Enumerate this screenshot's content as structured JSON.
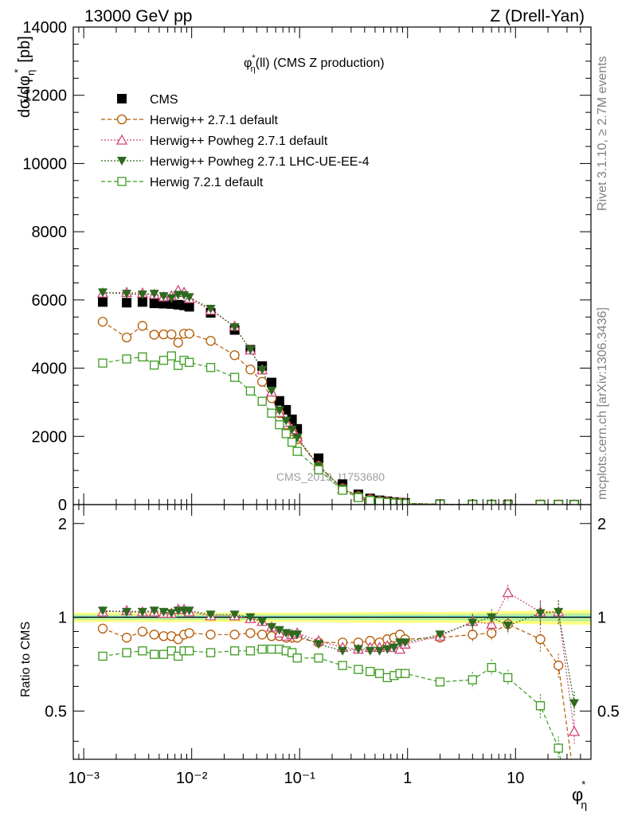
{
  "header": {
    "left": "13000 GeV pp",
    "right": "Z (Drell-Yan)",
    "plot_title": "φ",
    "plot_title_sup": "*",
    "plot_title_sub": "η",
    "plot_title_rest": "(ll) (CMS Z production)",
    "watermark": "CMS_2019_I1753680",
    "side_rivet": "Rivet 3.1.10, ≥ 2.7M events",
    "side_mcplots": "mcplots.cern.ch [arXiv:1306.3436]"
  },
  "axes": {
    "ylabel_main": "dσ/dφ",
    "ylabel_main_sub": "η",
    "ylabel_main_sup": "*",
    "ylabel_main_unit": "[pb]",
    "ylabel_ratio": "Ratio to CMS",
    "xlabel": "φ",
    "xlabel_sup": "*",
    "xlabel_sub": "η"
  },
  "chart_data": [
    {
      "panel": "main",
      "type": "line",
      "x_scale": "log",
      "xlim": [
        0.0008,
        50
      ],
      "ylim": [
        0,
        14000
      ],
      "y_ticks": [
        "0",
        "2000",
        "4000",
        "6000",
        "8000",
        "10000",
        "12000",
        "14000"
      ],
      "y_tick_values": [
        0,
        2000,
        4000,
        6000,
        8000,
        10000,
        12000,
        14000
      ],
      "x_ticks": [
        "10⁻³",
        "10⁻²",
        "10⁻¹",
        "1",
        "10"
      ],
      "x_tick_values": [
        0.001,
        0.01,
        0.1,
        1,
        10
      ],
      "legend_position": "top-left",
      "x": [
        0.0015,
        0.0025,
        0.0035,
        0.0045,
        0.0055,
        0.0065,
        0.0075,
        0.0085,
        0.0095,
        0.015,
        0.025,
        0.035,
        0.045,
        0.055,
        0.065,
        0.075,
        0.085,
        0.095,
        0.15,
        0.25,
        0.35,
        0.45,
        0.55,
        0.65,
        0.75,
        0.85,
        0.95,
        2,
        4,
        6,
        8.5,
        17,
        25,
        35
      ],
      "series": [
        {
          "name": "CMS",
          "color": "#000000",
          "marker": "square-filled",
          "values": [
            5940,
            5920,
            5940,
            5900,
            5890,
            5880,
            5860,
            5840,
            5800,
            5620,
            5120,
            4540,
            4060,
            3580,
            3040,
            2780,
            2500,
            2220,
            1360,
            600,
            300,
            180,
            125,
            98,
            72,
            58,
            48,
            12,
            3,
            1.8,
            1.2,
            0.6,
            0.4,
            0.3
          ]
        },
        {
          "name": "Herwig++ 2.7.1 default",
          "color": "#b35900",
          "marker": "circle-open",
          "dash": "dashed",
          "values": [
            5360,
            4900,
            5240,
            4980,
            4990,
            4990,
            4750,
            5010,
            5010,
            4800,
            4380,
            3960,
            3600,
            3120,
            2680,
            2350,
            2150,
            1920,
            1130,
            480,
            250,
            155,
            105,
            85,
            62,
            51,
            40,
            10,
            2.6,
            1.5,
            1.1,
            0.4,
            0.25,
            0.1
          ]
        },
        {
          "name": "Herwig++ Powheg 2.7.1 default",
          "color": "#d0457a",
          "marker": "triangle-open",
          "dash": "dotted",
          "values": [
            6200,
            6220,
            6200,
            6160,
            6090,
            6120,
            6280,
            6220,
            6040,
            5700,
            5230,
            4530,
            3950,
            3300,
            2700,
            2410,
            2200,
            1980,
            1140,
            460,
            240,
            145,
            100,
            80,
            58,
            46,
            40,
            10,
            2.9,
            1.7,
            1.4,
            0.6,
            0.42,
            0.13
          ]
        },
        {
          "name": "Herwig++ Powheg 2.7.1 LHC-UE-EE-4",
          "color": "#2d6a1f",
          "marker": "triangle-down-filled",
          "dash": "dotted",
          "values": [
            6220,
            6180,
            6160,
            6180,
            6110,
            6050,
            6150,
            6140,
            6080,
            5740,
            5200,
            4540,
            3950,
            3340,
            2760,
            2460,
            2200,
            1960,
            1120,
            470,
            240,
            140,
            97,
            77,
            58,
            48,
            40,
            10,
            2.9,
            1.8,
            1.1,
            0.6,
            0.42,
            0.16
          ]
        },
        {
          "name": "Herwig 7.2.1 default",
          "color": "#3c9a1f",
          "marker": "square-open",
          "dash": "dashed",
          "values": [
            4150,
            4270,
            4330,
            4090,
            4230,
            4360,
            4080,
            4230,
            4170,
            4020,
            3730,
            3330,
            3030,
            2680,
            2340,
            2080,
            1830,
            1560,
            1020,
            420,
            205,
            120,
            82,
            62,
            47,
            38,
            31,
            7.3,
            1.9,
            1.2,
            0.8,
            0.3,
            0.15,
            0.08
          ]
        }
      ]
    },
    {
      "panel": "ratio",
      "type": "line",
      "x_scale": "log",
      "xlim": [
        0.0008,
        50
      ],
      "ylim": [
        0.35,
        2.3
      ],
      "y_ticks": [
        "0.5",
        "1",
        "2"
      ],
      "y_tick_values": [
        0.5,
        1,
        2
      ],
      "ylabel": "Ratio to CMS",
      "reference_line": 1,
      "x": [
        0.0015,
        0.0025,
        0.0035,
        0.0045,
        0.0055,
        0.0065,
        0.0075,
        0.0085,
        0.0095,
        0.015,
        0.025,
        0.035,
        0.045,
        0.055,
        0.065,
        0.075,
        0.085,
        0.095,
        0.15,
        0.25,
        0.35,
        0.45,
        0.55,
        0.65,
        0.75,
        0.85,
        0.95,
        2,
        4,
        6,
        8.5,
        17,
        25,
        35
      ],
      "series": [
        {
          "name": "Herwig++ 2.7.1 default",
          "color": "#b35900",
          "marker": "circle-open",
          "dash": "dashed",
          "values": [
            0.92,
            0.86,
            0.9,
            0.88,
            0.87,
            0.87,
            0.85,
            0.88,
            0.89,
            0.88,
            0.88,
            0.89,
            0.88,
            0.87,
            0.87,
            0.86,
            0.86,
            0.86,
            0.83,
            0.83,
            0.83,
            0.84,
            0.83,
            0.85,
            0.86,
            0.88,
            0.85,
            0.86,
            0.88,
            0.89,
            0.95,
            0.85,
            0.7,
            0.3
          ]
        },
        {
          "name": "Herwig++ Powheg 2.7.1 default",
          "color": "#d0457a",
          "marker": "triangle-open",
          "dash": "dotted",
          "values": [
            1.04,
            1.05,
            1.04,
            1.04,
            1.03,
            1.03,
            1.06,
            1.06,
            1.04,
            1.01,
            1.01,
            0.99,
            0.97,
            0.93,
            0.89,
            0.87,
            0.88,
            0.89,
            0.84,
            0.8,
            0.79,
            0.8,
            0.8,
            0.81,
            0.8,
            0.79,
            0.82,
            0.87,
            0.97,
            0.95,
            1.2,
            1.04,
            1.04,
            0.43
          ]
        },
        {
          "name": "Herwig++ Powheg 2.7.1 LHC-UE-EE-4",
          "color": "#2d6a1f",
          "marker": "triangle-down-filled",
          "dash": "dotted",
          "values": [
            1.05,
            1.04,
            1.04,
            1.05,
            1.04,
            1.03,
            1.05,
            1.05,
            1.05,
            1.02,
            1.02,
            1.0,
            0.97,
            0.93,
            0.91,
            0.89,
            0.88,
            0.88,
            0.82,
            0.78,
            0.79,
            0.78,
            0.78,
            0.79,
            0.8,
            0.83,
            0.83,
            0.88,
            0.96,
            1.0,
            0.94,
            1.03,
            1.04,
            0.53
          ]
        },
        {
          "name": "Herwig 7.2.1 default",
          "color": "#3c9a1f",
          "marker": "square-open",
          "dash": "dashed",
          "values": [
            0.75,
            0.77,
            0.78,
            0.76,
            0.76,
            0.78,
            0.75,
            0.78,
            0.78,
            0.77,
            0.78,
            0.78,
            0.79,
            0.79,
            0.79,
            0.78,
            0.77,
            0.74,
            0.74,
            0.7,
            0.68,
            0.67,
            0.66,
            0.64,
            0.65,
            0.66,
            0.66,
            0.62,
            0.63,
            0.69,
            0.64,
            0.52,
            0.38,
            0.2
          ]
        }
      ]
    }
  ],
  "colors": {
    "band_outer": "#ffff80",
    "band_inner": "#b8f0a0",
    "ref_line_cyan": "#5fc8c8",
    "watermark": "#a0a0a0"
  }
}
